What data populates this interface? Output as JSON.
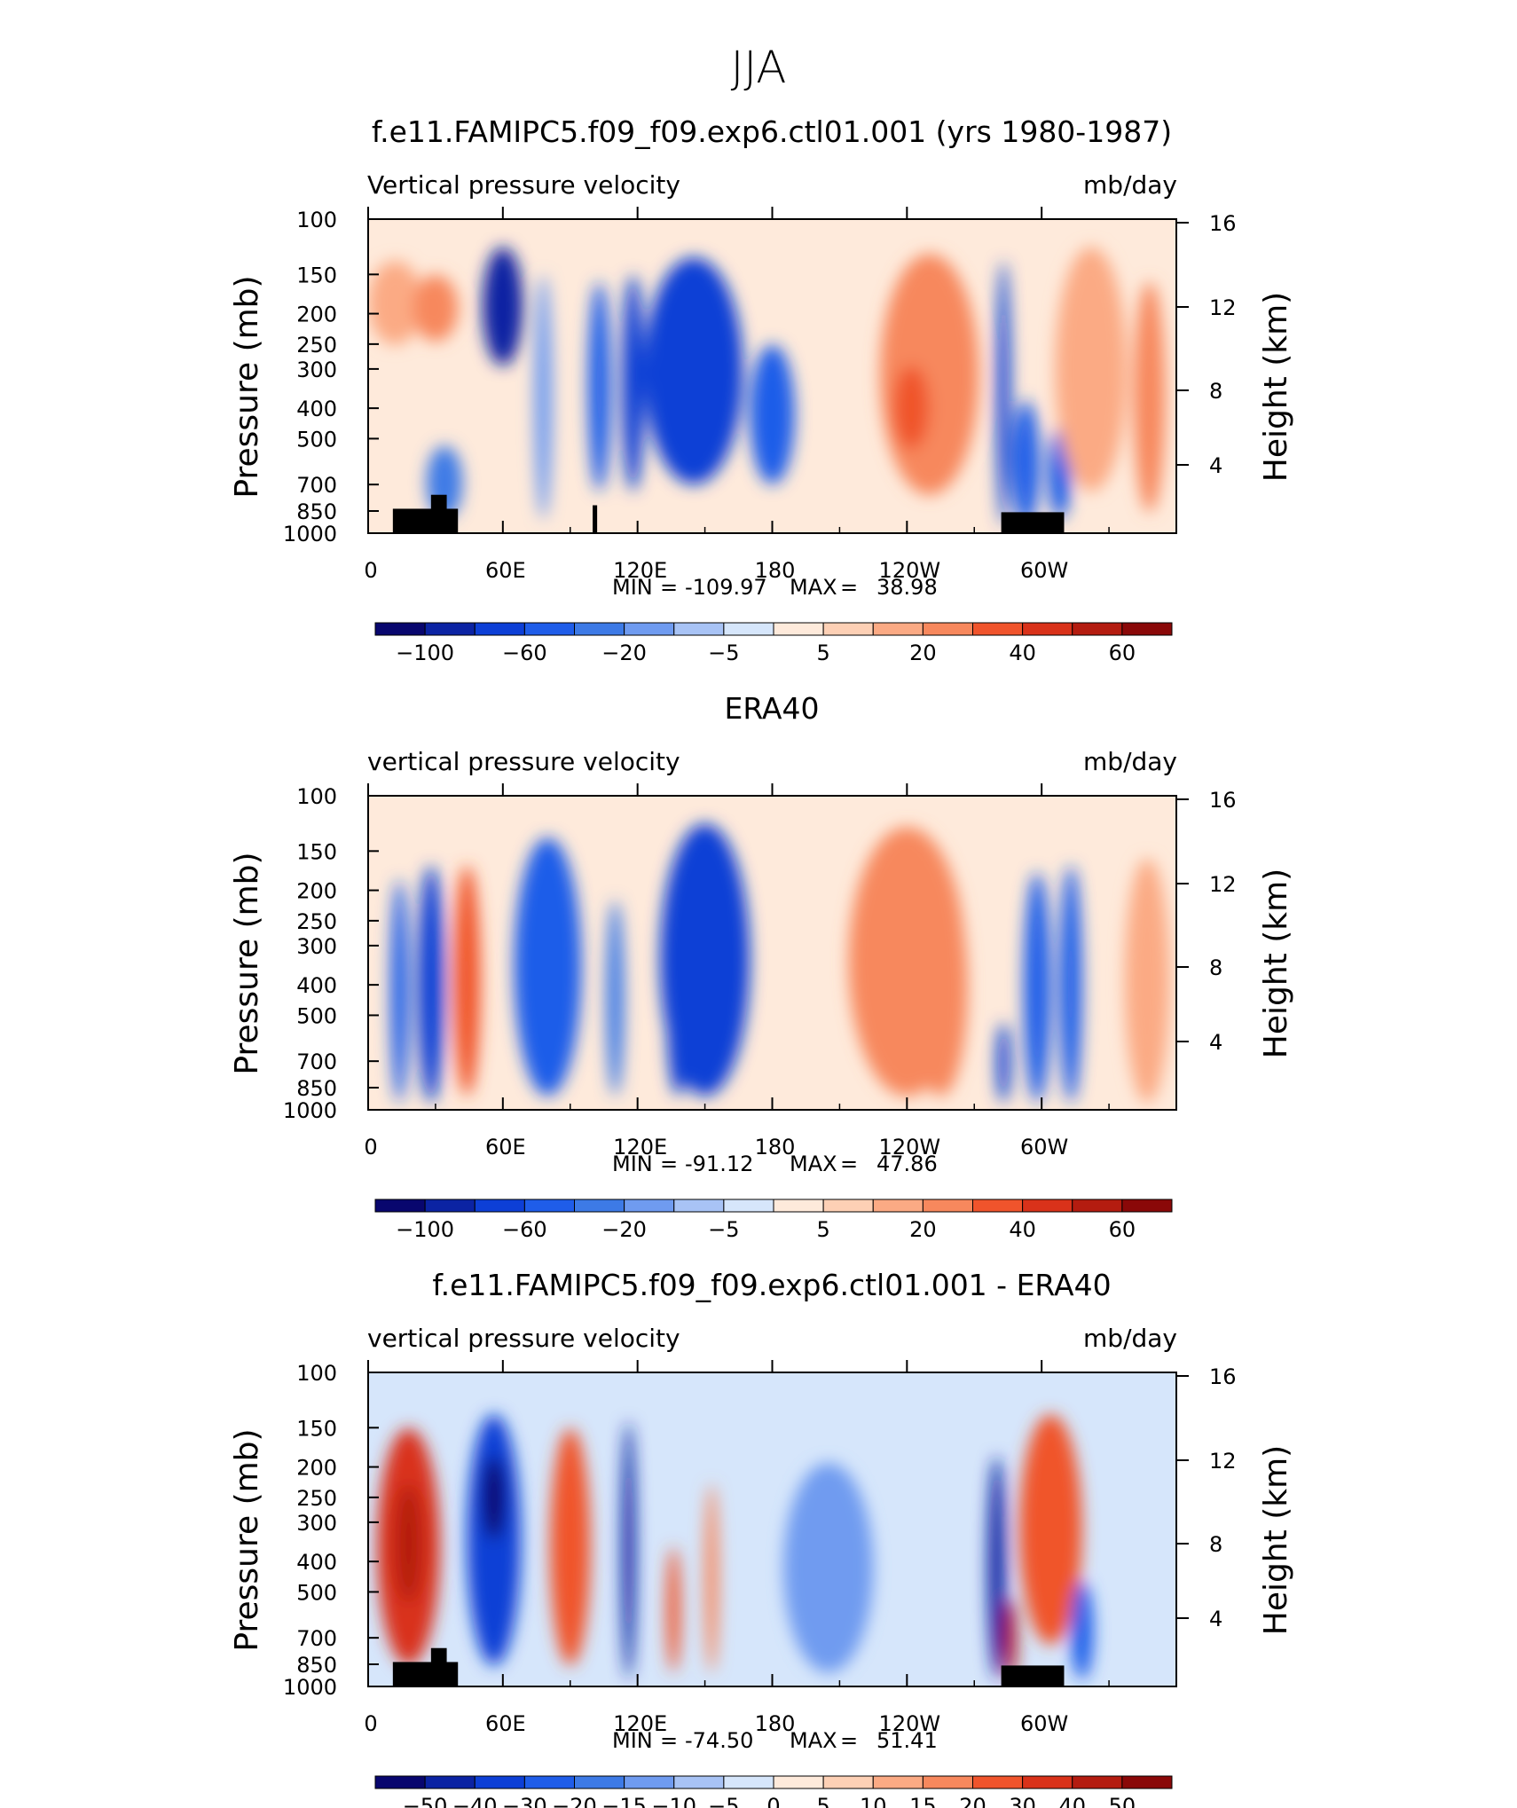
{
  "suptitle": "JJA",
  "colors": {
    "neg": [
      "#08066e",
      "#0b23a3",
      "#0d3fd6",
      "#1f5de9",
      "#3d7ae6",
      "#6f9bf0",
      "#a8c3f5",
      "#d6e6fb"
    ],
    "pos": [
      "#feeadb",
      "#fdd0b5",
      "#fbaa84",
      "#f7885d",
      "#f0542c",
      "#d9321a",
      "#b41c10",
      "#8a0808"
    ],
    "topography": "#000000"
  },
  "chart_data": [
    {
      "type": "heatmap",
      "title": "f.e11.FAMIPC5.f09_f09.exp6.ctl01.001 (yrs 1980-1987)",
      "variable": "Vertical pressure velocity",
      "units": "mb/day",
      "ylabel": "Pressure (mb)",
      "y2label": "Height (km)",
      "xticks": [
        "0",
        "60E",
        "120E",
        "180",
        "120W",
        "60W"
      ],
      "yticks": [
        "100",
        "150",
        "200",
        "250",
        "300",
        "400",
        "500",
        "700",
        "850",
        "1000"
      ],
      "y2ticks": [
        "16",
        "12",
        "8",
        "4"
      ],
      "stats": {
        "min_label": "MIN",
        "min": "-109.97",
        "max_label": "MAX",
        "max": "38.98"
      },
      "colorbar_ticks": [
        "−100",
        "−60",
        "−20",
        "−5",
        "5",
        "20",
        "40",
        "60"
      ],
      "fields": [
        {
          "lon": 12,
          "width": 12,
          "top": 1.2,
          "bottom": 3.6,
          "value": 18
        },
        {
          "lon": 30,
          "width": 10,
          "top": 1.6,
          "bottom": 3.5,
          "value": 22
        },
        {
          "lon": 34,
          "width": 8,
          "top": 6.5,
          "bottom": 8.6,
          "value": -15
        },
        {
          "lon": 60,
          "width": 9,
          "top": 0.8,
          "bottom": 4.2,
          "value": -70
        },
        {
          "lon": 78,
          "width": 4,
          "top": 1.6,
          "bottom": 8.6,
          "value": -10
        },
        {
          "lon": 103,
          "width": 5,
          "top": 1.8,
          "bottom": 7.8,
          "value": -35
        },
        {
          "lon": 118,
          "width": 5,
          "top": 1.6,
          "bottom": 7.8,
          "value": -45
        },
        {
          "lon": 145,
          "width": 22,
          "top": 1.1,
          "bottom": 7.6,
          "value": -42
        },
        {
          "lon": 180,
          "width": 10,
          "top": 3.6,
          "bottom": 7.6,
          "value": -25
        },
        {
          "lon": 250,
          "width": 22,
          "top": 1.0,
          "bottom": 7.9,
          "value": 20
        },
        {
          "lon": 242,
          "width": 8,
          "top": 4.2,
          "bottom": 6.6,
          "value": 30
        },
        {
          "lon": 283,
          "width": 3,
          "top": 1.2,
          "bottom": 8.8,
          "value": -60
        },
        {
          "lon": 293,
          "width": 6,
          "top": 5.2,
          "bottom": 8.8,
          "value": -35
        },
        {
          "lon": 308,
          "width": 5,
          "top": 6.0,
          "bottom": 8.6,
          "value": -25
        },
        {
          "lon": 322,
          "width": 16,
          "top": 0.8,
          "bottom": 7.8,
          "value": 18
        },
        {
          "lon": 348,
          "width": 7,
          "top": 1.8,
          "bottom": 8.4,
          "value": 28
        }
      ],
      "topography": [
        {
          "lon1": 11,
          "lon2": 40,
          "level": 8.3
        },
        {
          "lon1": 28,
          "lon2": 35,
          "level": 7.9
        },
        {
          "lon1": 100,
          "lon2": 102,
          "level": 8.2
        },
        {
          "lon1": 282,
          "lon2": 310,
          "level": 8.4
        }
      ]
    },
    {
      "type": "heatmap",
      "title": "ERA40",
      "variable": "vertical pressure velocity",
      "units": "mb/day",
      "ylabel": "Pressure (mb)",
      "y2label": "Height (km)",
      "xticks": [
        "0",
        "60E",
        "120E",
        "180",
        "120W",
        "60W"
      ],
      "yticks": [
        "100",
        "150",
        "200",
        "250",
        "300",
        "400",
        "500",
        "700",
        "850",
        "1000"
      ],
      "y2ticks": [
        "16",
        "12",
        "8",
        "4"
      ],
      "stats": {
        "min_label": "MIN",
        "min": "-91.12",
        "max_label": "MAX",
        "max": "47.86"
      },
      "colorbar_ticks": [
        "−100",
        "−60",
        "−20",
        "−5",
        "5",
        "20",
        "40",
        "60"
      ],
      "fields": [
        {
          "lon": 14,
          "width": 4,
          "top": 2.4,
          "bottom": 8.8,
          "value": -25
        },
        {
          "lon": 28,
          "width": 6,
          "top": 2.0,
          "bottom": 8.8,
          "value": -42
        },
        {
          "lon": 44,
          "width": 6,
          "top": 2.0,
          "bottom": 8.6,
          "value": 38
        },
        {
          "lon": 80,
          "width": 15,
          "top": 1.2,
          "bottom": 8.6,
          "value": -40
        },
        {
          "lon": 110,
          "width": 4,
          "top": 3.0,
          "bottom": 8.6,
          "value": -20
        },
        {
          "lon": 150,
          "width": 20,
          "top": 0.8,
          "bottom": 8.6,
          "value": -45
        },
        {
          "lon": 138,
          "width": 5,
          "top": 4.0,
          "bottom": 8.6,
          "value": -60
        },
        {
          "lon": 240,
          "width": 26,
          "top": 0.9,
          "bottom": 8.6,
          "value": 20
        },
        {
          "lon": 255,
          "width": 12,
          "top": 2.4,
          "bottom": 8.6,
          "value": 28
        },
        {
          "lon": 283,
          "width": 3,
          "top": 6.5,
          "bottom": 8.8,
          "value": -45
        },
        {
          "lon": 298,
          "width": 6,
          "top": 2.2,
          "bottom": 8.8,
          "value": -40
        },
        {
          "lon": 313,
          "width": 5,
          "top": 2.0,
          "bottom": 8.8,
          "value": -30
        },
        {
          "lon": 347,
          "width": 10,
          "top": 1.8,
          "bottom": 8.8,
          "value": 18
        }
      ],
      "topography": []
    },
    {
      "type": "heatmap",
      "title": "f.e11.FAMIPC5.f09_f09.exp6.ctl01.001 - ERA40",
      "variable": "vertical pressure velocity",
      "units": "mb/day",
      "ylabel": "Pressure (mb)",
      "y2label": "Height (km)",
      "xticks": [
        "0",
        "60E",
        "120E",
        "180",
        "120W",
        "60W"
      ],
      "yticks": [
        "100",
        "150",
        "200",
        "250",
        "300",
        "400",
        "500",
        "700",
        "850",
        "1000"
      ],
      "y2ticks": [
        "16",
        "12",
        "8",
        "4"
      ],
      "stats": {
        "min_label": "MIN",
        "min": "-74.50",
        "max_label": "MAX",
        "max": "51.41"
      },
      "colorbar_ticks": [
        "−50",
        "−40",
        "−30",
        "−20",
        "−15",
        "−10",
        "−5",
        "0",
        "5",
        "10",
        "15",
        "20",
        "30",
        "40",
        "50"
      ],
      "fields": [
        {
          "lon": 18,
          "width": 14,
          "top": 1.6,
          "bottom": 8.4,
          "value": 30
        },
        {
          "lon": 18,
          "width": 6,
          "top": 3.2,
          "bottom": 6.6,
          "value": 42
        },
        {
          "lon": 56,
          "width": 12,
          "top": 1.2,
          "bottom": 8.4,
          "value": -30
        },
        {
          "lon": 56,
          "width": 5,
          "top": 2.4,
          "bottom": 4.8,
          "value": -48
        },
        {
          "lon": 90,
          "width": 9,
          "top": 1.6,
          "bottom": 8.4,
          "value": 22
        },
        {
          "lon": 116,
          "width": 3,
          "top": 1.4,
          "bottom": 8.8,
          "value": -40
        },
        {
          "lon": 136,
          "width": 3,
          "top": 5.0,
          "bottom": 8.6,
          "value": 25
        },
        {
          "lon": 153,
          "width": 3,
          "top": 3.2,
          "bottom": 8.6,
          "value": 15
        },
        {
          "lon": 205,
          "width": 20,
          "top": 2.6,
          "bottom": 8.6,
          "value": -10
        },
        {
          "lon": 280,
          "width": 4,
          "top": 2.4,
          "bottom": 8.8,
          "value": -35
        },
        {
          "lon": 286,
          "width": 3,
          "top": 6.5,
          "bottom": 8.8,
          "value": 45
        },
        {
          "lon": 304,
          "width": 14,
          "top": 1.2,
          "bottom": 7.8,
          "value": 28
        },
        {
          "lon": 318,
          "width": 5,
          "top": 6.0,
          "bottom": 8.8,
          "value": -20
        }
      ],
      "topography": [
        {
          "lon1": 11,
          "lon2": 40,
          "level": 8.3
        },
        {
          "lon1": 28,
          "lon2": 35,
          "level": 7.9
        },
        {
          "lon1": 282,
          "lon2": 310,
          "level": 8.4
        }
      ]
    }
  ]
}
